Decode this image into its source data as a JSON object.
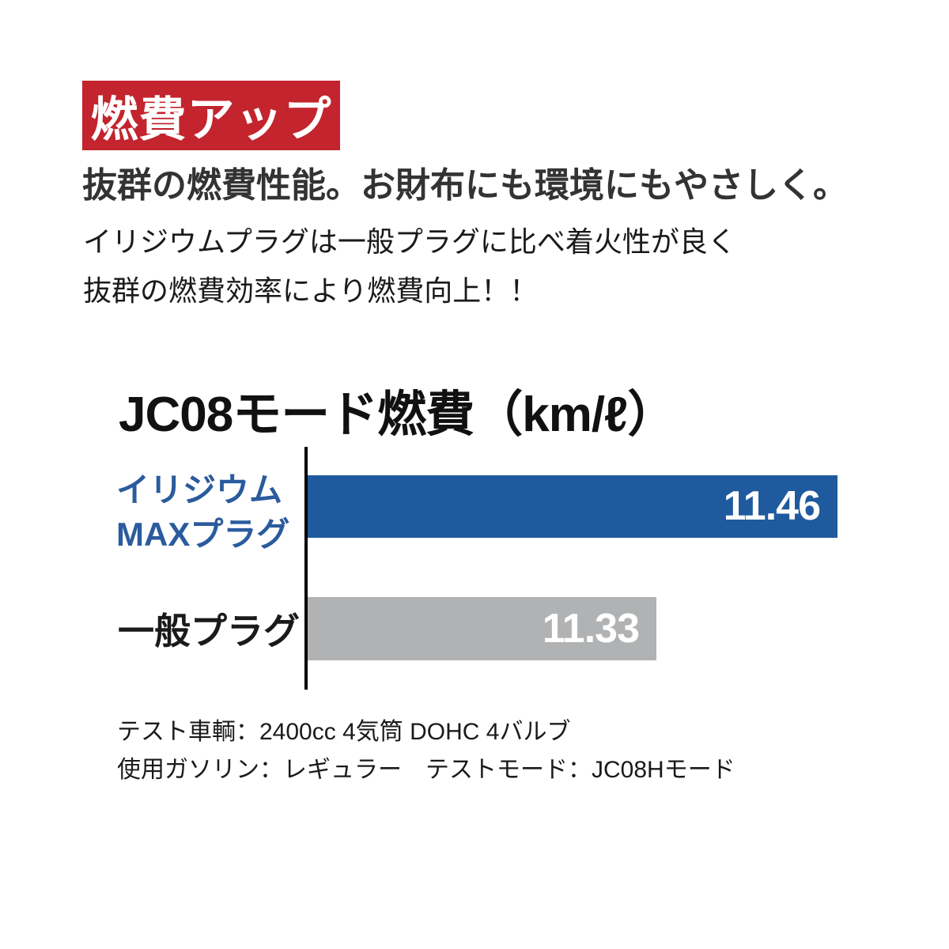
{
  "badge": {
    "label": "燃費アップ",
    "bg_color": "#c3242d",
    "text_color": "#ffffff"
  },
  "headline": "抜群の燃費性能。お財布にも環境にもやさしく。",
  "description": {
    "line1": "イリジウムプラグは一般プラグに比べ着火性が良く",
    "line2": "抜群の燃費効率により燃費向上！！"
  },
  "chart_data": {
    "type": "bar",
    "orientation": "horizontal",
    "title": "JC08モード燃費（km/ℓ）",
    "unit": "km/ℓ",
    "categories": [
      "イリジウムMAXプラグ",
      "一般プラグ"
    ],
    "values": [
      11.46,
      11.33
    ],
    "xlim": [
      11.08,
      11.46
    ],
    "grid": false,
    "legend": "none",
    "axis_color": "#000000",
    "series": [
      {
        "name": "イリジウムMAXプラグ",
        "label_lines": [
          "イリジウム",
          "MAXプラグ"
        ],
        "value": 11.46,
        "value_label": "11.46",
        "bar_color": "#1f5a9e",
        "label_color": "#2a5b9d",
        "value_text_color": "#ffffff"
      },
      {
        "name": "一般プラグ",
        "label_lines": [
          "一般プラグ"
        ],
        "value": 11.33,
        "value_label": "11.33",
        "bar_color": "#b0b2b3",
        "label_color": "#1a1a1a",
        "value_text_color": "#ffffff"
      }
    ],
    "footnote_lines": [
      "テスト車輌：2400cc 4気筒 DOHC 4バルブ",
      "使用ガソリン：レギュラー　テストモード：JC08Hモード"
    ]
  }
}
